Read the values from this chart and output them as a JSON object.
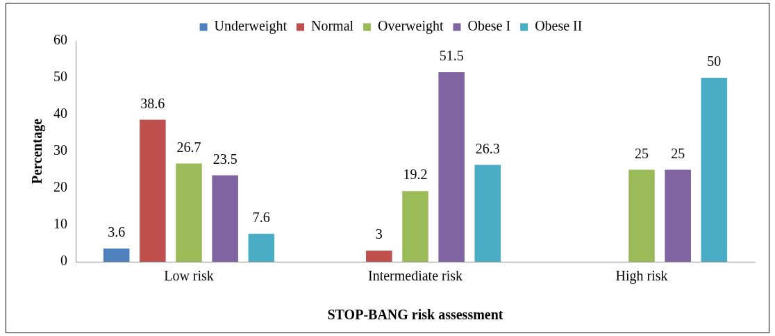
{
  "chart_data": {
    "type": "bar",
    "xlabel": "STOP-BANG risk assessment",
    "ylabel": "Percentage",
    "categories": [
      "Low risk",
      "Intermediate risk",
      "High risk"
    ],
    "series": [
      {
        "name": "Underweight",
        "color": "#4f81bd",
        "values": [
          3.6,
          null,
          null
        ]
      },
      {
        "name": "Normal",
        "color": "#c0504d",
        "values": [
          38.6,
          3,
          null
        ]
      },
      {
        "name": "Overweight",
        "color": "#9bbb59",
        "values": [
          26.7,
          19.2,
          25
        ]
      },
      {
        "name": "Obese I",
        "color": "#8064a2",
        "values": [
          23.5,
          51.5,
          25
        ]
      },
      {
        "name": "Obese II",
        "color": "#4bacc6",
        "values": [
          7.6,
          26.3,
          50
        ]
      }
    ],
    "ylim": [
      0,
      60
    ],
    "yticks": [
      0,
      10,
      20,
      30,
      40,
      50,
      60
    ],
    "grid": false,
    "legend": "top",
    "data_labels": true
  }
}
